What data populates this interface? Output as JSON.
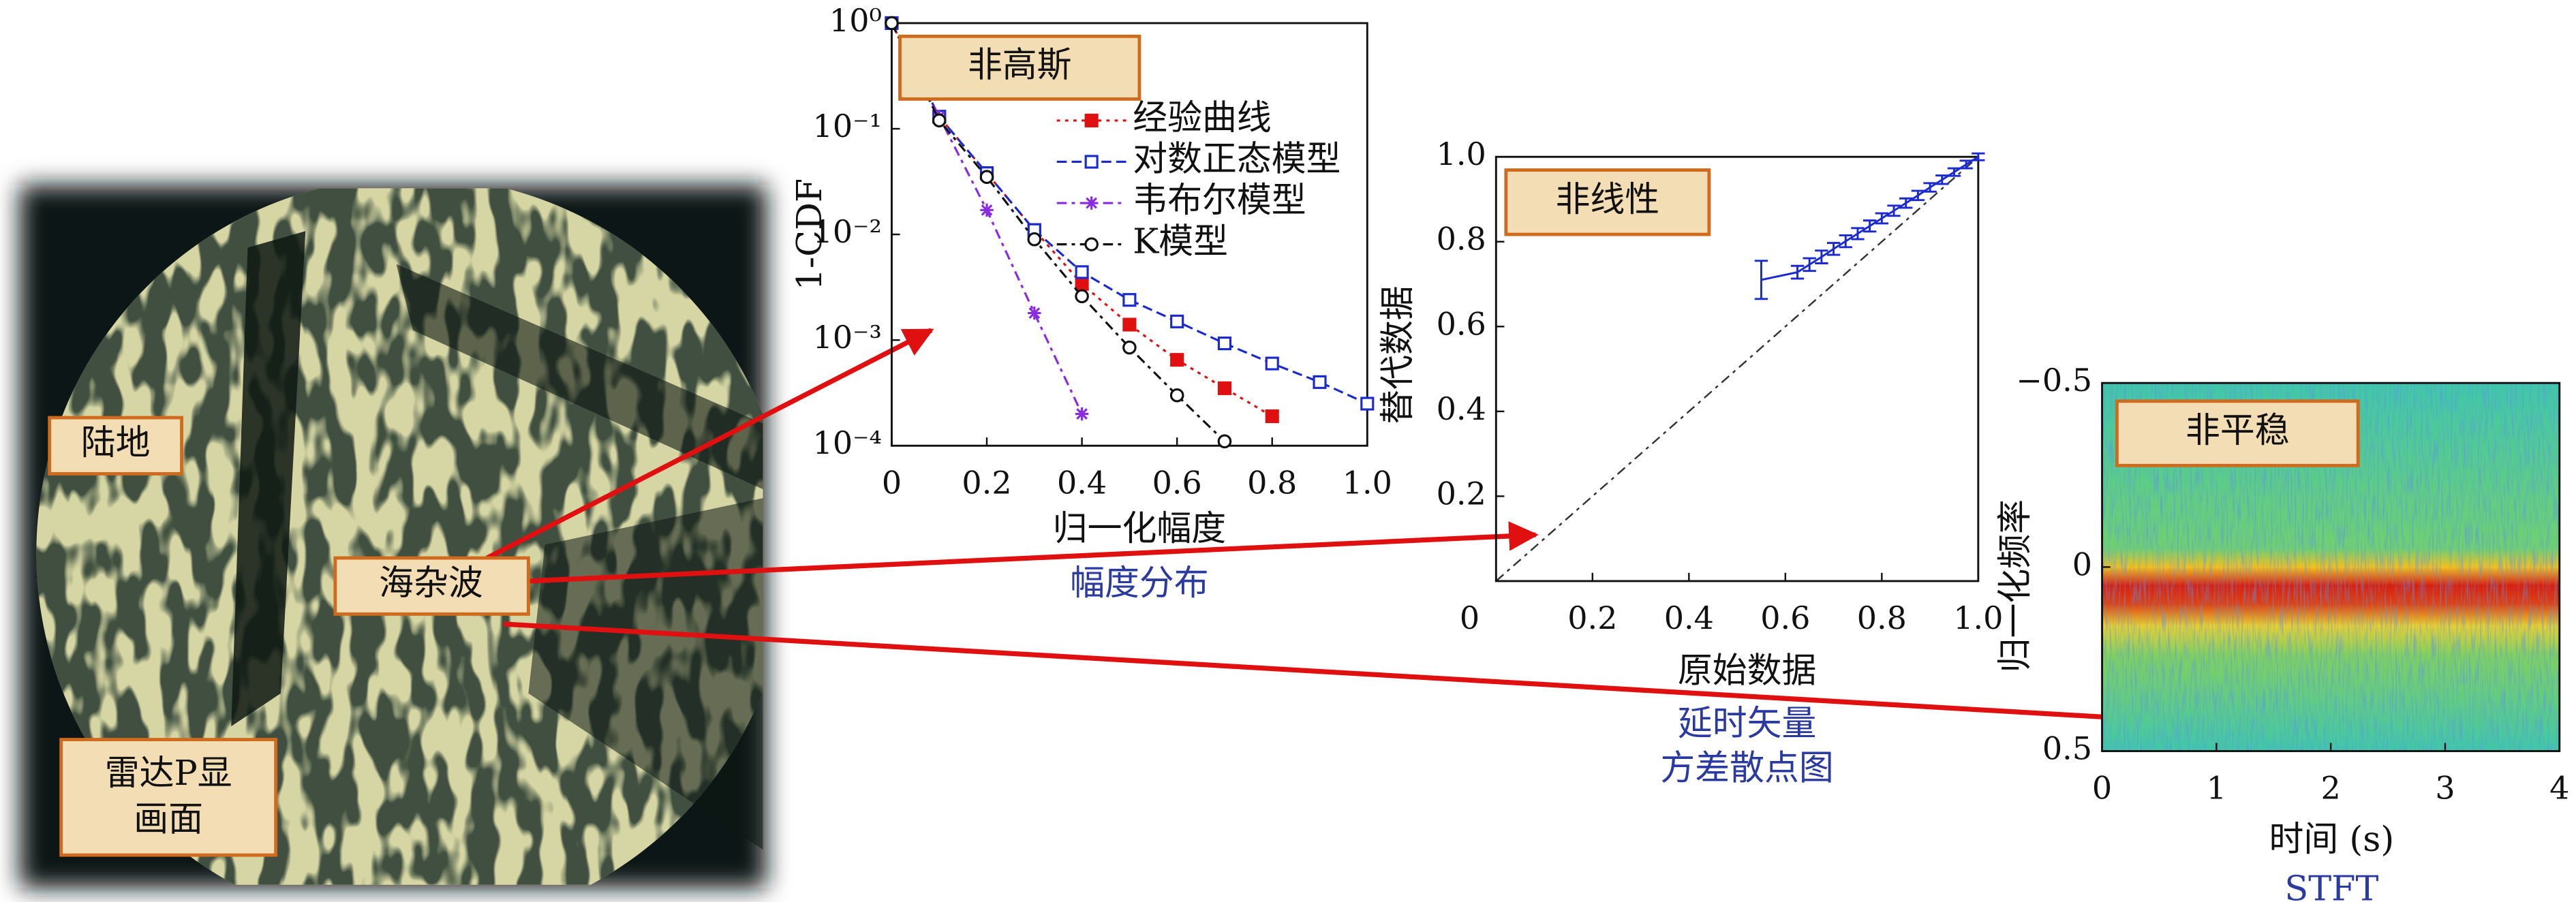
{
  "radar": {
    "land": "陆地",
    "sea_clutter": "海杂波",
    "display": [
      "雷达P显",
      "画面"
    ]
  },
  "chart_data": [
    {
      "type": "line",
      "title": "非高斯",
      "xlabel": "归一化幅度",
      "ylabel": "1-CDF",
      "caption": "幅度分布",
      "log_y": true,
      "legend": "upper right",
      "x": [
        0,
        0.1,
        0.2,
        0.3,
        0.4,
        0.5,
        0.6,
        0.7,
        0.8,
        0.9,
        1.0
      ],
      "xlim": [
        0,
        1
      ],
      "xticks": [
        0,
        0.2,
        0.4,
        0.6,
        0.8,
        {
          "value": 1,
          "label": "1.0"
        }
      ],
      "ylim": [
        0.0001,
        1
      ],
      "yticks": [
        {
          "value": 1,
          "label": "10⁰"
        },
        {
          "value": 0.1,
          "label": "10⁻¹"
        },
        {
          "value": 0.01,
          "label": "10⁻²"
        },
        {
          "value": 0.001,
          "label": "10⁻³"
        },
        {
          "value": 0.0001,
          "label": "10⁻⁴"
        }
      ],
      "series": [
        {
          "name": "经验曲线",
          "color": "#e01010",
          "marker": "filled-square",
          "linestyle": "dotted",
          "values": [
            1,
            0.13,
            0.038,
            0.011,
            0.0034,
            0.0014,
            0.00065,
            0.00035,
            0.00019,
            null,
            null
          ]
        },
        {
          "name": "对数正态模型",
          "color": "#1a2ad0",
          "marker": "square",
          "linestyle": "dashed",
          "values": [
            1,
            0.13,
            0.038,
            0.011,
            0.0044,
            0.0024,
            0.0015,
            0.00093,
            0.0006,
            0.0004,
            0.00025
          ]
        },
        {
          "name": "韦布尔模型",
          "color": "#8a2be2",
          "marker": "star",
          "linestyle": "dashdot",
          "values": [
            1,
            0.13,
            0.017,
            0.0018,
            0.0002,
            null,
            null,
            null,
            null,
            null,
            null
          ]
        },
        {
          "name": "K模型",
          "color": "#111111",
          "marker": "circle",
          "linestyle": "dashdot",
          "values": [
            1,
            0.12,
            0.035,
            0.009,
            0.0026,
            0.00085,
            0.0003,
            0.00011,
            null,
            null,
            null
          ]
        }
      ]
    },
    {
      "type": "scatter",
      "title": "非线性",
      "xlabel": "原始数据",
      "ylabel": "替代数据",
      "caption": [
        "延时矢量",
        "方差散点图"
      ],
      "xlim": [
        0,
        1
      ],
      "xticks": [
        0,
        0.2,
        0.4,
        0.6,
        0.8,
        {
          "value": 1,
          "label": "1.0"
        }
      ],
      "ylim": [
        0,
        1
      ],
      "yticks": [
        0.2,
        0.4,
        0.6,
        0.8,
        {
          "value": 1,
          "label": "1.0"
        }
      ],
      "series": [
        {
          "color": "#1a2ad0",
          "x": [
            0.55,
            0.625,
            0.65,
            0.675,
            0.7,
            0.725,
            0.75,
            0.775,
            0.8,
            0.825,
            0.85,
            0.875,
            0.9,
            0.925,
            0.95,
            0.975,
            1.0
          ],
          "values": [
            0.71,
            0.728,
            0.746,
            0.764,
            0.783,
            0.801,
            0.819,
            0.837,
            0.855,
            0.873,
            0.891,
            0.909,
            0.928,
            0.946,
            0.964,
            0.982,
            1.0
          ],
          "errors": [
            0.045,
            0.015,
            0.015,
            0.015,
            0.014,
            0.014,
            0.013,
            0.013,
            0.012,
            0.012,
            0.011,
            0.011,
            0.01,
            0.01,
            0.009,
            0.009,
            0.008
          ]
        }
      ]
    },
    {
      "type": "heatmap",
      "title": "非平稳",
      "xlabel": "时间 (s)",
      "ylabel": "归一化频率",
      "caption": "STFT",
      "xlim": [
        0,
        4
      ],
      "xticks": [
        0,
        1,
        2,
        3,
        4
      ],
      "ylim": [
        0.5,
        -0.5
      ],
      "yticks": [
        {
          "value": -0.5,
          "label": "−0.5"
        },
        0,
        0.5
      ]
    }
  ]
}
